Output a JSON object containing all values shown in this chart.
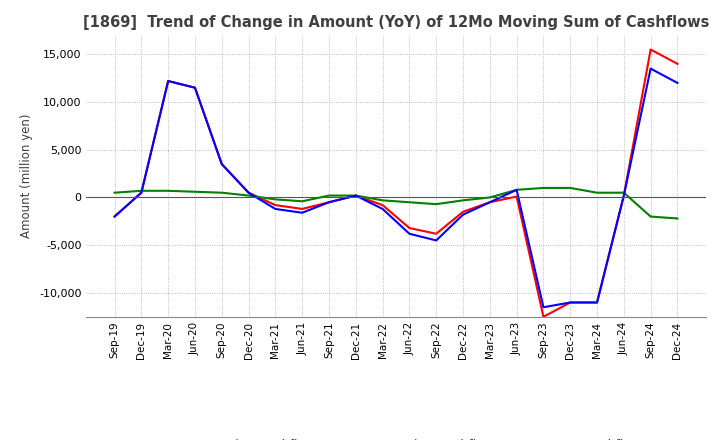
{
  "title": "[1869]  Trend of Change in Amount (YoY) of 12Mo Moving Sum of Cashflows",
  "ylabel": "Amount (million yen)",
  "ylim": [
    -12500,
    17000
  ],
  "yticks": [
    -10000,
    -5000,
    0,
    5000,
    10000,
    15000
  ],
  "x_labels": [
    "Sep-19",
    "Dec-19",
    "Mar-20",
    "Jun-20",
    "Sep-20",
    "Dec-20",
    "Mar-21",
    "Jun-21",
    "Sep-21",
    "Dec-21",
    "Mar-22",
    "Jun-22",
    "Sep-22",
    "Dec-22",
    "Mar-23",
    "Jun-23",
    "Sep-23",
    "Dec-23",
    "Mar-24",
    "Jun-24",
    "Sep-24",
    "Dec-24"
  ],
  "operating": [
    -2000,
    500,
    12200,
    11500,
    3500,
    500,
    -800,
    -1200,
    -500,
    200,
    -800,
    -3200,
    -3800,
    -1500,
    -500,
    100,
    -12500,
    -11000,
    -11000,
    200,
    15500,
    14000
  ],
  "investing": [
    500,
    700,
    700,
    600,
    500,
    200,
    -200,
    -400,
    200,
    200,
    -300,
    -500,
    -700,
    -300,
    0,
    800,
    1000,
    1000,
    500,
    500,
    -2000,
    -2200
  ],
  "free": [
    -2000,
    500,
    12200,
    11500,
    3500,
    500,
    -1200,
    -1600,
    -500,
    200,
    -1200,
    -3800,
    -4500,
    -1800,
    -500,
    800,
    -11500,
    -11000,
    -11000,
    200,
    13500,
    12000
  ],
  "op_color": "#ff0000",
  "inv_color": "#008000",
  "free_color": "#0000ff",
  "background_color": "#ffffff",
  "grid_color": "#aaaaaa",
  "title_color": "#404040"
}
